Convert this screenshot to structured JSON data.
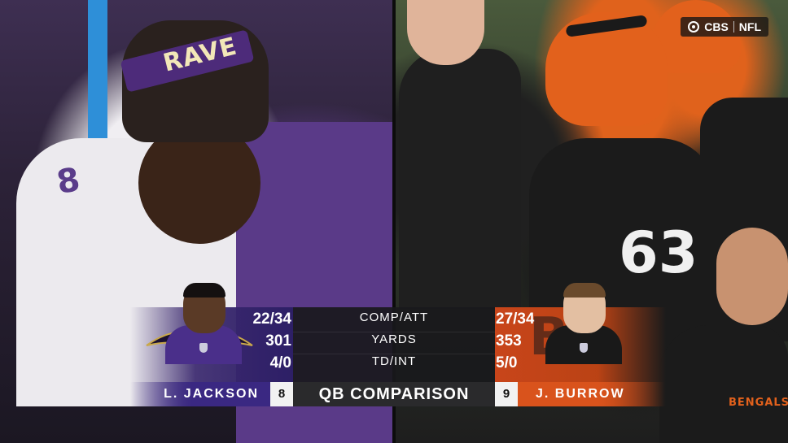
{
  "network": {
    "brand": "CBS",
    "league": "NFL"
  },
  "graphic": {
    "title": "QB COMPARISON",
    "rows": [
      {
        "label": "COMP/ATT",
        "left": "22/34",
        "right": "27/34"
      },
      {
        "label": "YARDS",
        "left": "301",
        "right": "353"
      },
      {
        "label": "TD/INT",
        "left": "4/0",
        "right": "5/0"
      }
    ],
    "left_player": {
      "name": "L. JACKSON",
      "number": "8",
      "team_color": "#3a2882"
    },
    "right_player": {
      "name": "J. BURROW",
      "number": "9",
      "team_color": "#d9531c"
    }
  },
  "scene": {
    "left_beanie_text": "RAVE",
    "left_jersey_number": "8",
    "right_jersey_number": "63",
    "right_jersey_text": "BENGALS"
  }
}
